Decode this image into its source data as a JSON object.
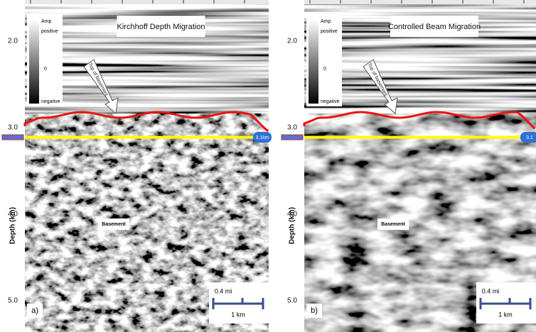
{
  "panels": [
    {
      "label": "a)",
      "title": "Kirchhoff Depth Migration",
      "annotation": "Top of basement",
      "region_label": "Basement",
      "marker_label": "3.1km",
      "legend": {
        "title": "Amp",
        "high": "positive",
        "mid": "0",
        "low": "negative"
      },
      "scale_bar": {
        "top": "0.4 mi",
        "bottom": "1 km"
      },
      "y_axis": {
        "label": "Depth  (km)",
        "ticks": [
          "2.0",
          "3.0",
          "4.0",
          "5.0"
        ]
      }
    },
    {
      "label": "b)",
      "title": "Controlled Beam Migration",
      "annotation": "Top of basement",
      "region_label": "Basement",
      "marker_label": "3.1",
      "legend": {
        "title": "Amp",
        "high": "positive",
        "mid": "0",
        "low": "negative"
      },
      "scale_bar": {
        "top": "0.4 mi",
        "bottom": "1 km"
      },
      "y_axis": {
        "label": "Depth  (km)",
        "ticks": [
          "2.0",
          "3.0",
          "4.0",
          "5.0"
        ]
      }
    }
  ]
}
